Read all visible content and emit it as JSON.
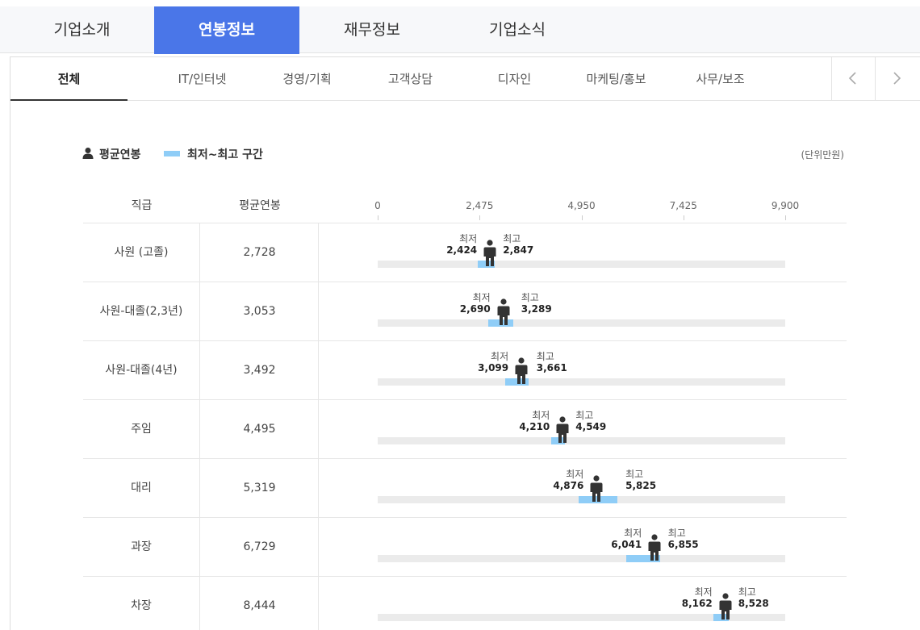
{
  "top_tabs": [
    {
      "label": "기업소개",
      "active": false
    },
    {
      "label": "연봉정보",
      "active": true
    },
    {
      "label": "재무정보",
      "active": false
    },
    {
      "label": "기업소식",
      "active": false
    }
  ],
  "sub_tabs": [
    {
      "label": "전체",
      "active": true
    },
    {
      "label": "IT/인터넷",
      "active": false
    },
    {
      "label": "경영/기획",
      "active": false
    },
    {
      "label": "고객상담",
      "active": false
    },
    {
      "label": "디자인",
      "active": false
    },
    {
      "label": "마케팅/홍보",
      "active": false
    },
    {
      "label": "사무/보조",
      "active": false
    }
  ],
  "legend": {
    "avg_label": "평균연봉",
    "range_label": "최저~최고 구간",
    "unit": "(단위만원)"
  },
  "table_header": {
    "rank": "직급",
    "avg": "평균연봉"
  },
  "labels": {
    "min": "최저",
    "max": "최고"
  },
  "colors": {
    "accent": "#4a76e8",
    "range": "#8fcdf7",
    "track": "#ebebeb",
    "person": "#333333"
  },
  "chart_data": {
    "type": "bar",
    "xlim": [
      0,
      9900
    ],
    "ticks": [
      "0",
      "2,475",
      "4,950",
      "7,425",
      "9,900"
    ],
    "tick_values": [
      0,
      2475,
      4950,
      7425,
      9900
    ],
    "rows": [
      {
        "rank": "사원 (고졸)",
        "avg": 2728,
        "avg_label": "2,728",
        "min": 2424,
        "min_label": "2,424",
        "max": 2847,
        "max_label": "2,847"
      },
      {
        "rank": "사원-대졸(2,3년)",
        "avg": 3053,
        "avg_label": "3,053",
        "min": 2690,
        "min_label": "2,690",
        "max": 3289,
        "max_label": "3,289"
      },
      {
        "rank": "사원-대졸(4년)",
        "avg": 3492,
        "avg_label": "3,492",
        "min": 3099,
        "min_label": "3,099",
        "max": 3661,
        "max_label": "3,661"
      },
      {
        "rank": "주임",
        "avg": 4495,
        "avg_label": "4,495",
        "min": 4210,
        "min_label": "4,210",
        "max": 4549,
        "max_label": "4,549"
      },
      {
        "rank": "대리",
        "avg": 5319,
        "avg_label": "5,319",
        "min": 4876,
        "min_label": "4,876",
        "max": 5825,
        "max_label": "5,825"
      },
      {
        "rank": "과장",
        "avg": 6729,
        "avg_label": "6,729",
        "min": 6041,
        "min_label": "6,041",
        "max": 6855,
        "max_label": "6,855"
      },
      {
        "rank": "차장",
        "avg": 8444,
        "avg_label": "8,444",
        "min": 8162,
        "min_label": "8,162",
        "max": 8528,
        "max_label": "8,528"
      }
    ]
  }
}
